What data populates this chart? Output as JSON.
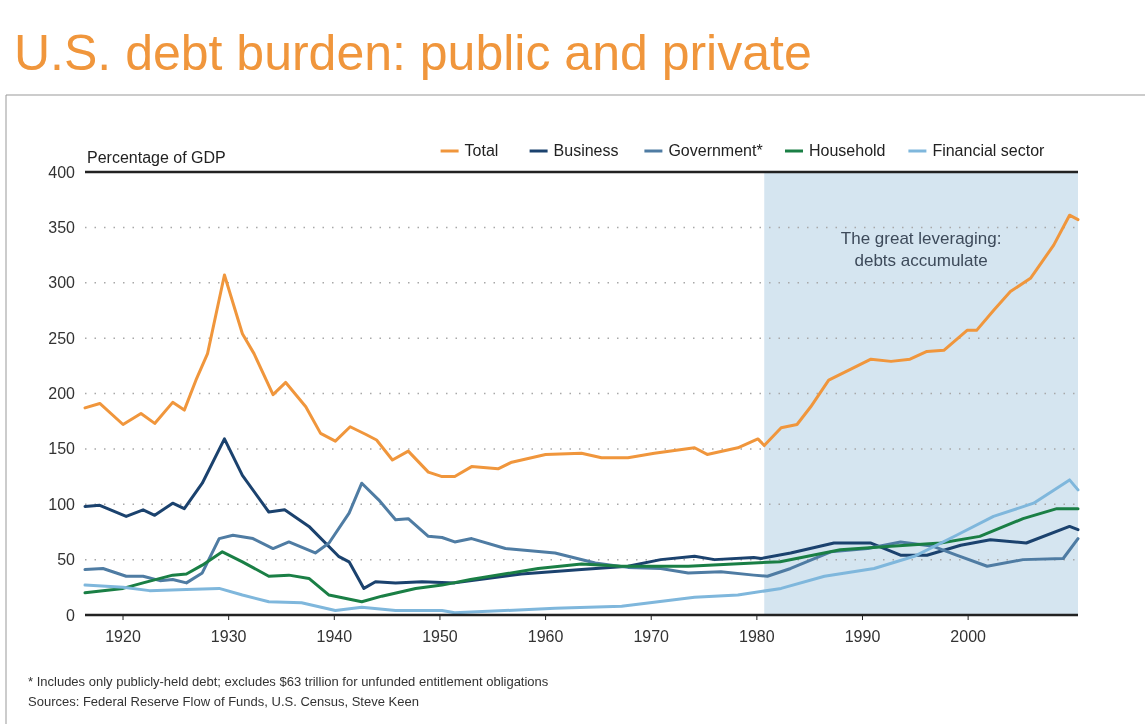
{
  "chart_data": {
    "type": "line",
    "title": "U.S. debt burden: public and private",
    "ylabel": "Percentage of GDP",
    "xlim": [
      1916.4,
      2010.4
    ],
    "xticks": [
      1920,
      1930,
      1940,
      1950,
      1960,
      1970,
      1980,
      1990,
      2000
    ],
    "ylim": [
      0,
      400
    ],
    "yticks": [
      0,
      50,
      100,
      150,
      200,
      250,
      300,
      350,
      400
    ],
    "grid": "y",
    "legend": "top",
    "line_style": "solid",
    "marker": "none",
    "bands": [
      {
        "axis": "x",
        "from": 1980.7,
        "to": 2010.4,
        "label": "The great leveraging: debts accumulate",
        "color": "#d5e5f0"
      }
    ],
    "annotations": [
      "* Includes only publicly-held debt; excludes $63 trillion for unfunded entitlement obligations",
      "Sources: Federal Reserve Flow of Funds, U.S. Census, Steve Keen"
    ],
    "series": [
      {
        "name": "Total",
        "color": "#f0963c",
        "x": [
          1916.4,
          1917.8,
          1920,
          1921.7,
          1923,
          1924.7,
          1925.8,
          1926.9,
          1928,
          1929.6,
          1931.3,
          1932.4,
          1934.2,
          1935.4,
          1937.3,
          1938.7,
          1940.1,
          1941.5,
          1943,
          1944,
          1945.5,
          1947,
          1948.9,
          1950.2,
          1951.4,
          1953,
          1955.5,
          1956.8,
          1960,
          1963.4,
          1965.3,
          1967.8,
          1970.3,
          1974.1,
          1975.3,
          1978.2,
          1980.1,
          1980.7,
          1982.3,
          1983.8,
          1985.1,
          1986.8,
          1988.9,
          1990.8,
          1992.7,
          1994.5,
          1996.1,
          1997.7,
          1999.9,
          2000.8,
          2002.4,
          2004,
          2005.9,
          2008.1,
          2009.6,
          2010.4
        ],
        "values": [
          187,
          191,
          172,
          182,
          173,
          192,
          185,
          212,
          236,
          307,
          254,
          236,
          199,
          210,
          188,
          164,
          157,
          170,
          163,
          158,
          140,
          148,
          129,
          125,
          125,
          134,
          132,
          138,
          145,
          146,
          142,
          142,
          146,
          151,
          145,
          151,
          159,
          153,
          169,
          172,
          188,
          212,
          222,
          231,
          229,
          231,
          238,
          239,
          257,
          257,
          275,
          292,
          304,
          334,
          361,
          357
        ]
      },
      {
        "name": "Business",
        "color": "#1b426e",
        "x": [
          1916.4,
          1917.8,
          1920.3,
          1921.9,
          1923,
          1924.7,
          1925.8,
          1927.5,
          1929.6,
          1931.3,
          1933.8,
          1935.3,
          1937.6,
          1940.4,
          1941.4,
          1942.8,
          1943.9,
          1945.8,
          1948.3,
          1951.4,
          1957.7,
          1963.4,
          1967.8,
          1970.9,
          1974.1,
          1976,
          1979.7,
          1980.4,
          1983.2,
          1987.3,
          1990.8,
          1993.6,
          1996.1,
          1999.3,
          2002.1,
          2005.5,
          2009.6,
          2010.4
        ],
        "values": [
          98,
          99,
          89,
          95,
          90,
          101,
          96,
          119,
          159,
          126,
          93,
          95,
          80,
          53,
          48,
          24,
          30,
          29,
          30,
          29,
          37,
          41,
          44,
          50,
          53,
          50,
          52,
          51,
          56,
          65,
          65,
          54,
          54,
          63,
          68,
          65,
          80,
          77
        ]
      },
      {
        "name": "Government*",
        "color": "#4f7ca3",
        "x": [
          1916.4,
          1918.1,
          1920.3,
          1921.9,
          1923.5,
          1924.7,
          1926,
          1927.5,
          1929.1,
          1930.4,
          1932.3,
          1934.2,
          1935.7,
          1938.2,
          1939.5,
          1941.4,
          1942.6,
          1944.2,
          1945.8,
          1947,
          1948.9,
          1950.2,
          1951.4,
          1953,
          1956.2,
          1960.9,
          1964.7,
          1967.8,
          1970.9,
          1973.5,
          1976.6,
          1979.7,
          1981,
          1983.2,
          1987,
          1990.5,
          1993.6,
          1996.7,
          1998.9,
          2001.8,
          2005.2,
          2009,
          2010.4
        ],
        "values": [
          41,
          42,
          35,
          35,
          31,
          32,
          29,
          38,
          69,
          72,
          69,
          60,
          66,
          56,
          65,
          92,
          119,
          104,
          86,
          87,
          71,
          70,
          66,
          69,
          60,
          56,
          47,
          43,
          42,
          38,
          39,
          36,
          35,
          42,
          57,
          60,
          66,
          62,
          54,
          44,
          50,
          51,
          69
        ]
      },
      {
        "name": "Household",
        "color": "#1a7f45",
        "x": [
          1916.4,
          1920,
          1921.9,
          1924.7,
          1926,
          1927.5,
          1929.4,
          1931.3,
          1933.8,
          1935.7,
          1937.6,
          1939.5,
          1942.6,
          1944.5,
          1947.7,
          1950.2,
          1952.9,
          1959.3,
          1963.4,
          1967.2,
          1973.5,
          1979.7,
          1982.2,
          1987.9,
          1992.7,
          1997.4,
          2001.1,
          2005.2,
          2008.4,
          2010.4
        ],
        "values": [
          20,
          24,
          29,
          36,
          37,
          45,
          57,
          48,
          35,
          36,
          33,
          18,
          12,
          17,
          24,
          27,
          32,
          42,
          46,
          44,
          44,
          47,
          48,
          59,
          62,
          65,
          71,
          87,
          96,
          96
        ]
      },
      {
        "name": "Financial sector",
        "color": "#7fb7dc",
        "x": [
          1916.4,
          1920,
          1922.5,
          1926,
          1929.1,
          1931.3,
          1933.8,
          1936.9,
          1940.1,
          1942.6,
          1945.8,
          1950.2,
          1951.4,
          1960.9,
          1967.2,
          1974.1,
          1978.2,
          1982.3,
          1986.4,
          1991.1,
          1994.9,
          1998.9,
          2002.4,
          2006.2,
          2009.6,
          2010.4
        ],
        "values": [
          27,
          25,
          22,
          23,
          24,
          18,
          12,
          11,
          4,
          7,
          4,
          4,
          2,
          6,
          8,
          16,
          18,
          24,
          35,
          42,
          53,
          72,
          89,
          101,
          122,
          113
        ]
      }
    ]
  }
}
